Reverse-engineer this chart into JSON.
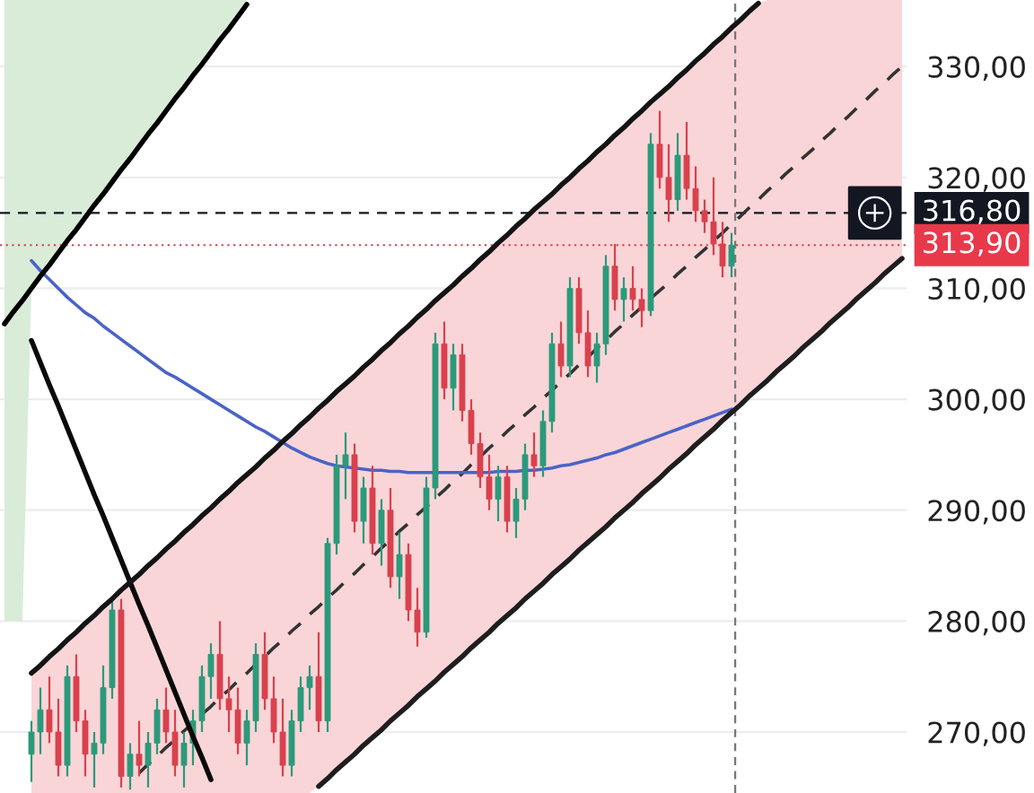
{
  "chart_data": {
    "type": "candlestick",
    "categories": [
      null,
      null,
      null,
      null,
      null,
      null,
      null,
      null,
      null,
      null,
      null,
      null,
      null,
      null,
      null,
      null,
      null,
      null,
      null,
      null,
      null,
      null,
      null,
      null,
      null,
      null,
      null,
      null,
      null,
      null,
      null,
      null,
      null,
      null,
      null,
      null,
      null,
      null,
      null,
      null,
      null,
      null,
      null,
      null,
      null,
      null,
      null,
      null,
      null,
      null,
      null,
      null,
      null,
      null,
      null,
      null,
      null,
      null,
      null,
      null,
      null,
      null,
      null,
      null,
      null,
      null,
      null,
      null,
      null,
      null,
      null,
      null,
      null,
      null,
      null,
      null,
      null,
      null,
      null,
      null,
      null,
      null,
      null,
      null,
      null,
      null,
      null,
      null,
      null,
      null,
      null,
      null,
      null,
      null,
      null,
      null,
      null,
      null,
      null,
      null,
      null
    ],
    "ylim": [
      264.5,
      336
    ],
    "yticks": [
      {
        "value": 270,
        "label": "270,00"
      },
      {
        "value": 280,
        "label": "280,00"
      },
      {
        "value": 290,
        "label": "290,00"
      },
      {
        "value": 300,
        "label": "300,00"
      },
      {
        "value": 310,
        "label": "310,00"
      },
      {
        "value": 320,
        "label": "320,00"
      },
      {
        "value": 330,
        "label": "330,00"
      }
    ],
    "tick_labels": "y",
    "grid": "y",
    "legend": false,
    "series": [
      {
        "type": "line",
        "color": "#000000",
        "line_style": "solid",
        "values": [
          306.8,
          307.9,
          308.9,
          310.0,
          311.1,
          312.1,
          313.2,
          314.3,
          315.3,
          316.4,
          317.5,
          318.5,
          319.6,
          320.7,
          321.7,
          322.8,
          323.9,
          324.9,
          326.0,
          327.1,
          328.1,
          329.2,
          330.2,
          331.3,
          332.4,
          333.4,
          334.5,
          335.6,
          null,
          null,
          null,
          null,
          null,
          null,
          null,
          null,
          null,
          null,
          null,
          null,
          null,
          null,
          null,
          null,
          null,
          null,
          null,
          null,
          null,
          null,
          null,
          null,
          null,
          null,
          null,
          null,
          null,
          null,
          null,
          null,
          null,
          null,
          null,
          null,
          null,
          null,
          null,
          null,
          null,
          null,
          null,
          null,
          null,
          null,
          null,
          null,
          null,
          null,
          null,
          null,
          null,
          null,
          null,
          null,
          null,
          null,
          null,
          null,
          null,
          null,
          null,
          null,
          null,
          null,
          null,
          null,
          null,
          null,
          null,
          null,
          null
        ],
        "lower": [
          280,
          280,
          280,
          310.0,
          311.1,
          312.1,
          313.2,
          314.3,
          315.3,
          316.4,
          317.5,
          318.5,
          319.6,
          320.7,
          321.7,
          322.8,
          323.9,
          324.9,
          326.0,
          327.1,
          328.1,
          329.2,
          330.2,
          331.3,
          332.4,
          333.4,
          334.5,
          335.6,
          null,
          null,
          null,
          null,
          null,
          null,
          null,
          null,
          null,
          null,
          null,
          null,
          null,
          null,
          null,
          null,
          null,
          null,
          null,
          null,
          null,
          null,
          null,
          null,
          null,
          null,
          null,
          null,
          null,
          null,
          null,
          null,
          null,
          null,
          null,
          null,
          null,
          null,
          null,
          null,
          null,
          null,
          null,
          null,
          null,
          null,
          null,
          null,
          null,
          null,
          null,
          null,
          null,
          null,
          null,
          null,
          null,
          null,
          null,
          null,
          null,
          null,
          null,
          null,
          null,
          null,
          null,
          null,
          null,
          null,
          null,
          null,
          null
        ],
        "upper": [
          336,
          336,
          336,
          336,
          336,
          336,
          336,
          336,
          336,
          336,
          336,
          336,
          336,
          336,
          336,
          336,
          336,
          336,
          336,
          336,
          336,
          336,
          336,
          336,
          336,
          336,
          336,
          336,
          null,
          null,
          null,
          null,
          null,
          null,
          null,
          null,
          null,
          null,
          null,
          null,
          null,
          null,
          null,
          null,
          null,
          null,
          null,
          null,
          null,
          null,
          null,
          null,
          null,
          null,
          null,
          null,
          null,
          null,
          null,
          null,
          null,
          null,
          null,
          null,
          null,
          null,
          null,
          null,
          null,
          null,
          null,
          null,
          null,
          null,
          null,
          null,
          null,
          null,
          null,
          null,
          null,
          null,
          null,
          null,
          null,
          null,
          null,
          null,
          null,
          null,
          null,
          null,
          null,
          null,
          null,
          null,
          null,
          null,
          null,
          null,
          null
        ]
      },
      {
        "type": "line",
        "color": "#333333",
        "line_style": "dashed",
        "values": [
          null,
          null,
          null,
          null,
          null,
          null,
          null,
          null,
          null,
          null,
          null,
          null,
          null,
          null,
          null,
          266.3,
          267.1,
          267.8,
          268.6,
          269.3,
          270.1,
          270.8,
          271.6,
          272.3,
          273.1,
          273.8,
          274.6,
          275.3,
          276.1,
          276.8,
          277.6,
          278.3,
          279.1,
          279.8,
          280.6,
          281.3,
          282.1,
          282.8,
          283.6,
          284.3,
          285.1,
          285.8,
          286.6,
          287.3,
          288.1,
          288.8,
          289.6,
          290.3,
          291.1,
          291.8,
          292.6,
          293.3,
          294.1,
          294.8,
          295.6,
          296.3,
          297.1,
          297.8,
          298.6,
          299.3,
          300.1,
          300.8,
          301.6,
          302.3,
          303.1,
          303.8,
          304.6,
          305.3,
          306.1,
          306.8,
          307.6,
          308.3,
          309.1,
          309.8,
          310.5,
          311.3,
          312.0,
          312.8,
          313.5,
          314.3,
          315.0,
          315.8,
          316.5,
          317.3,
          318.0,
          318.8,
          319.5,
          320.3,
          321.0,
          321.8,
          322.5,
          323.3,
          324.0,
          324.8,
          325.5,
          326.3,
          327.0,
          327.8,
          328.5,
          329.3,
          330.0
        ],
        "lower": [
          null,
          null,
          null,
          264.5,
          264.5,
          264.5,
          264.5,
          264.5,
          264.5,
          264.5,
          264.5,
          264.5,
          264.5,
          264.5,
          264.5,
          264.5,
          264.5,
          264.5,
          264.5,
          264.5,
          264.5,
          264.5,
          264.5,
          264.5,
          264.5,
          264.5,
          264.5,
          264.5,
          264.5,
          264.5,
          264.5,
          264.5,
          264.5,
          264.5,
          264.5,
          265.1,
          265.8,
          266.6,
          267.3,
          268.0,
          268.8,
          269.5,
          270.2,
          271.0,
          271.7,
          272.4,
          273.2,
          273.9,
          274.6,
          275.4,
          276.1,
          276.8,
          277.6,
          278.3,
          279.0,
          279.8,
          280.5,
          281.2,
          282.0,
          282.7,
          283.4,
          284.2,
          284.9,
          285.6,
          286.4,
          287.1,
          287.8,
          288.5,
          289.3,
          290.0,
          290.7,
          291.5,
          292.2,
          292.9,
          293.7,
          294.4,
          295.1,
          295.9,
          296.6,
          297.3,
          298.1,
          298.8,
          299.5,
          300.3,
          301.0,
          301.7,
          302.5,
          303.2,
          303.9,
          304.7,
          305.4,
          306.1,
          306.9,
          307.6,
          308.3,
          309.1,
          309.8,
          310.5,
          311.3,
          312.0,
          312.7
        ],
        "upper": [
          null,
          null,
          null,
          275.3,
          276.0,
          276.8,
          277.5,
          278.3,
          279.0,
          279.8,
          280.5,
          281.3,
          282.0,
          282.8,
          283.5,
          284.2,
          285.0,
          285.7,
          286.5,
          287.2,
          288.0,
          288.7,
          289.5,
          290.2,
          291.0,
          291.7,
          292.5,
          293.2,
          293.9,
          294.7,
          295.4,
          296.2,
          296.9,
          297.7,
          298.4,
          299.2,
          299.9,
          300.7,
          301.4,
          302.1,
          302.9,
          303.6,
          304.4,
          305.1,
          305.9,
          306.6,
          307.4,
          308.1,
          308.9,
          309.6,
          310.3,
          311.1,
          311.8,
          312.6,
          313.3,
          314.1,
          314.8,
          315.6,
          316.3,
          317.1,
          317.8,
          318.5,
          319.3,
          320.0,
          320.8,
          321.5,
          322.3,
          323.0,
          323.8,
          324.5,
          325.3,
          326.0,
          326.8,
          327.5,
          328.2,
          329.0,
          329.7,
          330.5,
          331.2,
          332.0,
          332.7,
          333.5,
          334.2,
          335.0,
          335.7,
          336,
          336,
          336,
          336,
          336,
          336,
          336,
          336,
          336,
          336,
          336,
          336,
          336,
          336,
          336,
          336
        ]
      },
      {
        "type": "line",
        "color": "#4a63c8",
        "line_style": "solid",
        "values": [
          null,
          null,
          null,
          312.5,
          311.6,
          310.8,
          310.0,
          309.2,
          308.5,
          307.8,
          307.3,
          306.6,
          306.0,
          305.4,
          304.8,
          304.2,
          303.6,
          303.0,
          302.4,
          302.0,
          301.5,
          301.0,
          300.5,
          300.0,
          299.5,
          299.0,
          298.5,
          298.0,
          297.5,
          297.1,
          296.6,
          296.1,
          295.6,
          295.2,
          294.8,
          294.5,
          294.2,
          294.0,
          293.9,
          293.8,
          293.7,
          293.6,
          293.6,
          293.5,
          293.5,
          293.4,
          293.4,
          293.4,
          293.4,
          293.4,
          293.4,
          293.4,
          293.4,
          293.4,
          293.4,
          293.5,
          293.5,
          293.5,
          293.6,
          293.6,
          293.7,
          293.8,
          294.0,
          294.1,
          294.3,
          294.5,
          294.7,
          295.0,
          295.2,
          295.5,
          295.8,
          296.1,
          296.4,
          296.7,
          297.0,
          297.3,
          297.6,
          297.9,
          298.2,
          298.5,
          298.8,
          299.1,
          null,
          null,
          null,
          null,
          null,
          null,
          null,
          null,
          null,
          null,
          null,
          null,
          null,
          null,
          null,
          null,
          null,
          null,
          null
        ]
      },
      {
        "type": "candlestick",
        "colors": [
          null,
          null,
          null,
          "#2b9a7a",
          "#2b9a7a",
          "#d9414d",
          "#d9414d",
          "#2b9a7a",
          "#d9414d",
          "#d9414d",
          "#2b9a7a",
          "#2b9a7a",
          "#2b9a7a",
          "#d9414d",
          "#2b9a7a",
          "#d9414d",
          "#2b9a7a",
          "#2b9a7a",
          "#d9414d",
          "#d9414d",
          "#2b9a7a",
          "#2b9a7a",
          "#2b9a7a",
          "#2b9a7a",
          "#d9414d",
          "#d9414d",
          "#d9414d",
          "#2b9a7a",
          "#2b9a7a",
          "#d9414d",
          "#d9414d",
          "#d9414d",
          "#2b9a7a",
          "#2b9a7a",
          "#2b9a7a",
          "#d9414d",
          "#2b9a7a",
          "#2b9a7a",
          "#2b9a7a",
          "#d9414d",
          "#2b9a7a",
          "#d9414d",
          "#2b9a7a",
          "#d9414d",
          "#2b9a7a",
          "#d9414d",
          "#d9414d",
          "#2b9a7a",
          "#2b9a7a",
          "#d9414d",
          "#2b9a7a",
          "#d9414d",
          "#d9414d",
          "#d9414d",
          "#d9414d",
          "#2b9a7a",
          "#d9414d",
          "#2b9a7a",
          "#2b9a7a",
          "#d9414d",
          "#2b9a7a",
          "#2b9a7a",
          "#d9414d",
          "#2b9a7a",
          "#d9414d",
          "#d9414d",
          "#2b9a7a",
          "#2b9a7a",
          "#d9414d",
          "#2b9a7a",
          "#d9414d",
          "#d9414d",
          "#2b9a7a",
          "#d9414d",
          "#d9414d",
          "#2b9a7a",
          "#d9414d",
          "#d9414d",
          "#d9414d",
          "#d9414d",
          "#d9414d",
          "#2b9a7a",
          null,
          null,
          null,
          null,
          null,
          null,
          null,
          null,
          null,
          null,
          null,
          null,
          null,
          null,
          null,
          null,
          null,
          null,
          null
        ],
        "ohlc": [
          null,
          null,
          null,
          [
            268,
            271,
            265.5,
            270
          ],
          [
            270,
            274,
            268,
            272
          ],
          [
            272,
            275,
            269,
            270
          ],
          [
            270,
            273,
            266,
            267
          ],
          [
            267,
            276,
            266,
            275
          ],
          [
            275,
            277,
            270,
            271
          ],
          [
            271,
            272,
            266,
            268
          ],
          [
            268,
            270,
            265,
            269
          ],
          [
            269,
            276,
            268,
            274
          ],
          [
            274,
            282,
            273,
            281
          ],
          [
            281,
            282,
            265,
            266
          ],
          [
            266,
            269,
            264.8,
            268
          ],
          [
            268,
            271,
            266,
            267
          ],
          [
            267,
            270,
            265,
            269
          ],
          [
            269,
            273,
            268,
            272
          ],
          [
            272,
            274,
            269,
            270
          ],
          [
            270,
            272,
            266,
            267
          ],
          [
            267,
            270,
            265,
            269
          ],
          [
            269,
            272,
            267,
            271
          ],
          [
            271,
            276,
            270,
            275
          ],
          [
            275,
            278,
            273,
            277
          ],
          [
            277,
            280,
            272,
            273
          ],
          [
            273,
            275,
            270,
            272
          ],
          [
            272,
            274,
            268,
            269
          ],
          [
            269,
            272,
            267,
            271
          ],
          [
            271,
            278,
            270,
            277
          ],
          [
            277,
            279,
            272,
            273
          ],
          [
            273,
            275,
            269,
            270
          ],
          [
            270,
            273,
            266,
            267
          ],
          [
            267,
            272,
            266,
            271
          ],
          [
            271,
            275,
            270,
            274
          ],
          [
            274,
            276,
            272,
            275
          ],
          [
            275,
            279,
            270,
            271
          ],
          [
            271,
            287.5,
            270,
            287
          ],
          [
            287,
            295,
            286,
            294
          ],
          [
            294,
            297,
            291,
            295
          ],
          [
            295,
            296,
            288,
            289
          ],
          [
            289,
            293,
            287,
            292
          ],
          [
            292,
            294,
            286,
            287
          ],
          [
            287,
            291,
            285,
            290
          ],
          [
            290,
            292,
            283,
            284
          ],
          [
            284,
            288,
            282,
            286
          ],
          [
            286,
            287,
            280,
            281
          ],
          [
            281,
            283,
            277.7,
            279
          ],
          [
            279,
            293,
            278.5,
            292
          ],
          [
            292,
            306,
            291,
            305
          ],
          [
            305,
            307,
            300,
            301
          ],
          [
            301,
            305,
            299,
            304
          ],
          [
            304,
            305,
            298,
            299
          ],
          [
            299,
            300,
            295,
            296
          ],
          [
            296,
            297,
            292,
            293
          ],
          [
            293,
            295,
            290,
            291
          ],
          [
            291,
            294,
            289,
            293
          ],
          [
            293,
            294,
            288,
            289
          ],
          [
            289,
            292,
            287.5,
            291
          ],
          [
            291,
            296,
            290,
            295
          ],
          [
            295,
            297,
            293,
            294
          ],
          [
            294,
            299,
            293,
            298
          ],
          [
            298,
            306,
            297,
            305
          ],
          [
            305,
            307,
            302,
            303
          ],
          [
            303,
            311,
            302,
            310
          ],
          [
            310,
            311,
            305,
            306
          ],
          [
            306,
            308,
            302,
            303
          ],
          [
            303,
            306,
            301.5,
            305
          ],
          [
            305,
            313,
            304,
            312
          ],
          [
            312,
            314,
            308,
            309
          ],
          [
            309,
            311,
            307,
            310
          ],
          [
            310,
            312,
            308,
            309
          ],
          [
            309,
            310,
            306.5,
            308
          ],
          [
            308,
            324,
            307.5,
            323
          ],
          [
            323,
            326,
            319,
            320
          ],
          [
            320,
            323,
            316,
            318
          ],
          [
            318,
            324,
            317,
            322
          ],
          [
            322,
            325,
            318,
            319
          ],
          [
            319,
            321,
            316,
            317
          ],
          [
            317,
            318,
            315,
            316
          ],
          [
            316,
            320,
            313,
            314
          ],
          [
            314,
            316,
            311,
            312
          ],
          [
            312,
            315,
            311,
            313.9
          ],
          null,
          null,
          null,
          null,
          null,
          null,
          null,
          null,
          null,
          null,
          null,
          null,
          null,
          null,
          null,
          null,
          null,
          null,
          null
        ]
      },
      {
        "type": "line",
        "color": "#0a0a0a",
        "line_style": "solid",
        "values": [
          null,
          null,
          null,
          305.3,
          303.3,
          301.3,
          299.4,
          297.4,
          295.4,
          293.4,
          291.4,
          289.5,
          287.5,
          285.5,
          283.5,
          281.5,
          279.6,
          277.6,
          275.6,
          273.6,
          271.6,
          269.6,
          267.7,
          265.7,
          null,
          null,
          null,
          null,
          null,
          null,
          null,
          null,
          null,
          null,
          null,
          null,
          null,
          null,
          null,
          null,
          null,
          null,
          null,
          null,
          null,
          null,
          null,
          null,
          null,
          null,
          null,
          null,
          null,
          null,
          null,
          null,
          null,
          null,
          null,
          null,
          null,
          null,
          null,
          null,
          null,
          null,
          null,
          null,
          null,
          null,
          null,
          null,
          null,
          null,
          null,
          null,
          null,
          null,
          null,
          null,
          null,
          null,
          null,
          null,
          null,
          null,
          null,
          null,
          null,
          null,
          null,
          null,
          null,
          null,
          null,
          null,
          null,
          null,
          null,
          null,
          null
        ]
      },
      {
        "type": "line",
        "color": "#141414",
        "line_style": "solid",
        "values": [
          null,
          null,
          null,
          275.3,
          276.0,
          276.8,
          277.5,
          278.3,
          279.0,
          279.8,
          280.5,
          281.3,
          282.0,
          282.8,
          283.5,
          284.2,
          285.0,
          285.7,
          286.5,
          287.2,
          288.0,
          288.7,
          289.5,
          290.2,
          291.0,
          291.7,
          292.5,
          293.2,
          293.9,
          294.7,
          295.4,
          296.2,
          296.9,
          297.7,
          298.4,
          299.2,
          299.9,
          300.7,
          301.4,
          302.1,
          302.9,
          303.6,
          304.4,
          305.1,
          305.9,
          306.6,
          307.4,
          308.1,
          308.9,
          309.6,
          310.3,
          311.1,
          311.8,
          312.6,
          313.3,
          314.1,
          314.8,
          315.6,
          316.3,
          317.1,
          317.8,
          318.5,
          319.3,
          320.0,
          320.8,
          321.5,
          322.3,
          323.0,
          323.8,
          324.5,
          325.3,
          326.0,
          326.8,
          327.5,
          328.2,
          329.0,
          329.7,
          330.5,
          331.2,
          332.0,
          332.7,
          333.5,
          334.2,
          335.0,
          335.7,
          null,
          null,
          null,
          null,
          null,
          null,
          null,
          null,
          null,
          null,
          null,
          null,
          null,
          null,
          null,
          null
        ]
      },
      {
        "type": "line",
        "color": "#1e1e1e",
        "line_style": "solid",
        "values": [
          null,
          null,
          null,
          null,
          null,
          null,
          null,
          null,
          null,
          null,
          null,
          null,
          null,
          null,
          null,
          null,
          null,
          null,
          null,
          null,
          null,
          null,
          null,
          null,
          null,
          null,
          null,
          null,
          null,
          null,
          null,
          null,
          null,
          null,
          null,
          265.1,
          265.8,
          266.6,
          267.3,
          268.0,
          268.8,
          269.5,
          270.2,
          271.0,
          271.7,
          272.4,
          273.2,
          273.9,
          274.6,
          275.4,
          276.1,
          276.8,
          277.6,
          278.3,
          279.0,
          279.8,
          280.5,
          281.2,
          282.0,
          282.7,
          283.4,
          284.2,
          284.9,
          285.6,
          286.4,
          287.1,
          287.8,
          288.5,
          289.3,
          290.0,
          290.7,
          291.5,
          292.2,
          292.9,
          293.7,
          294.4,
          295.1,
          295.9,
          296.6,
          297.3,
          298.1,
          298.8,
          299.5,
          300.3,
          301.0,
          301.7,
          302.5,
          303.2,
          303.9,
          304.7,
          305.4,
          306.1,
          306.9,
          307.6,
          308.3,
          309.1,
          309.8,
          310.5,
          311.3,
          312.0,
          312.7
        ]
      }
    ],
    "ref_lines": [
      {
        "axis": "y",
        "value": 316.8,
        "label": "316,80",
        "color": "#131722",
        "line_style": "dashed"
      },
      {
        "axis": "y",
        "value": 313.9,
        "label": "313,90",
        "color": "#e8394a",
        "line_style": "dotted"
      }
    ]
  }
}
